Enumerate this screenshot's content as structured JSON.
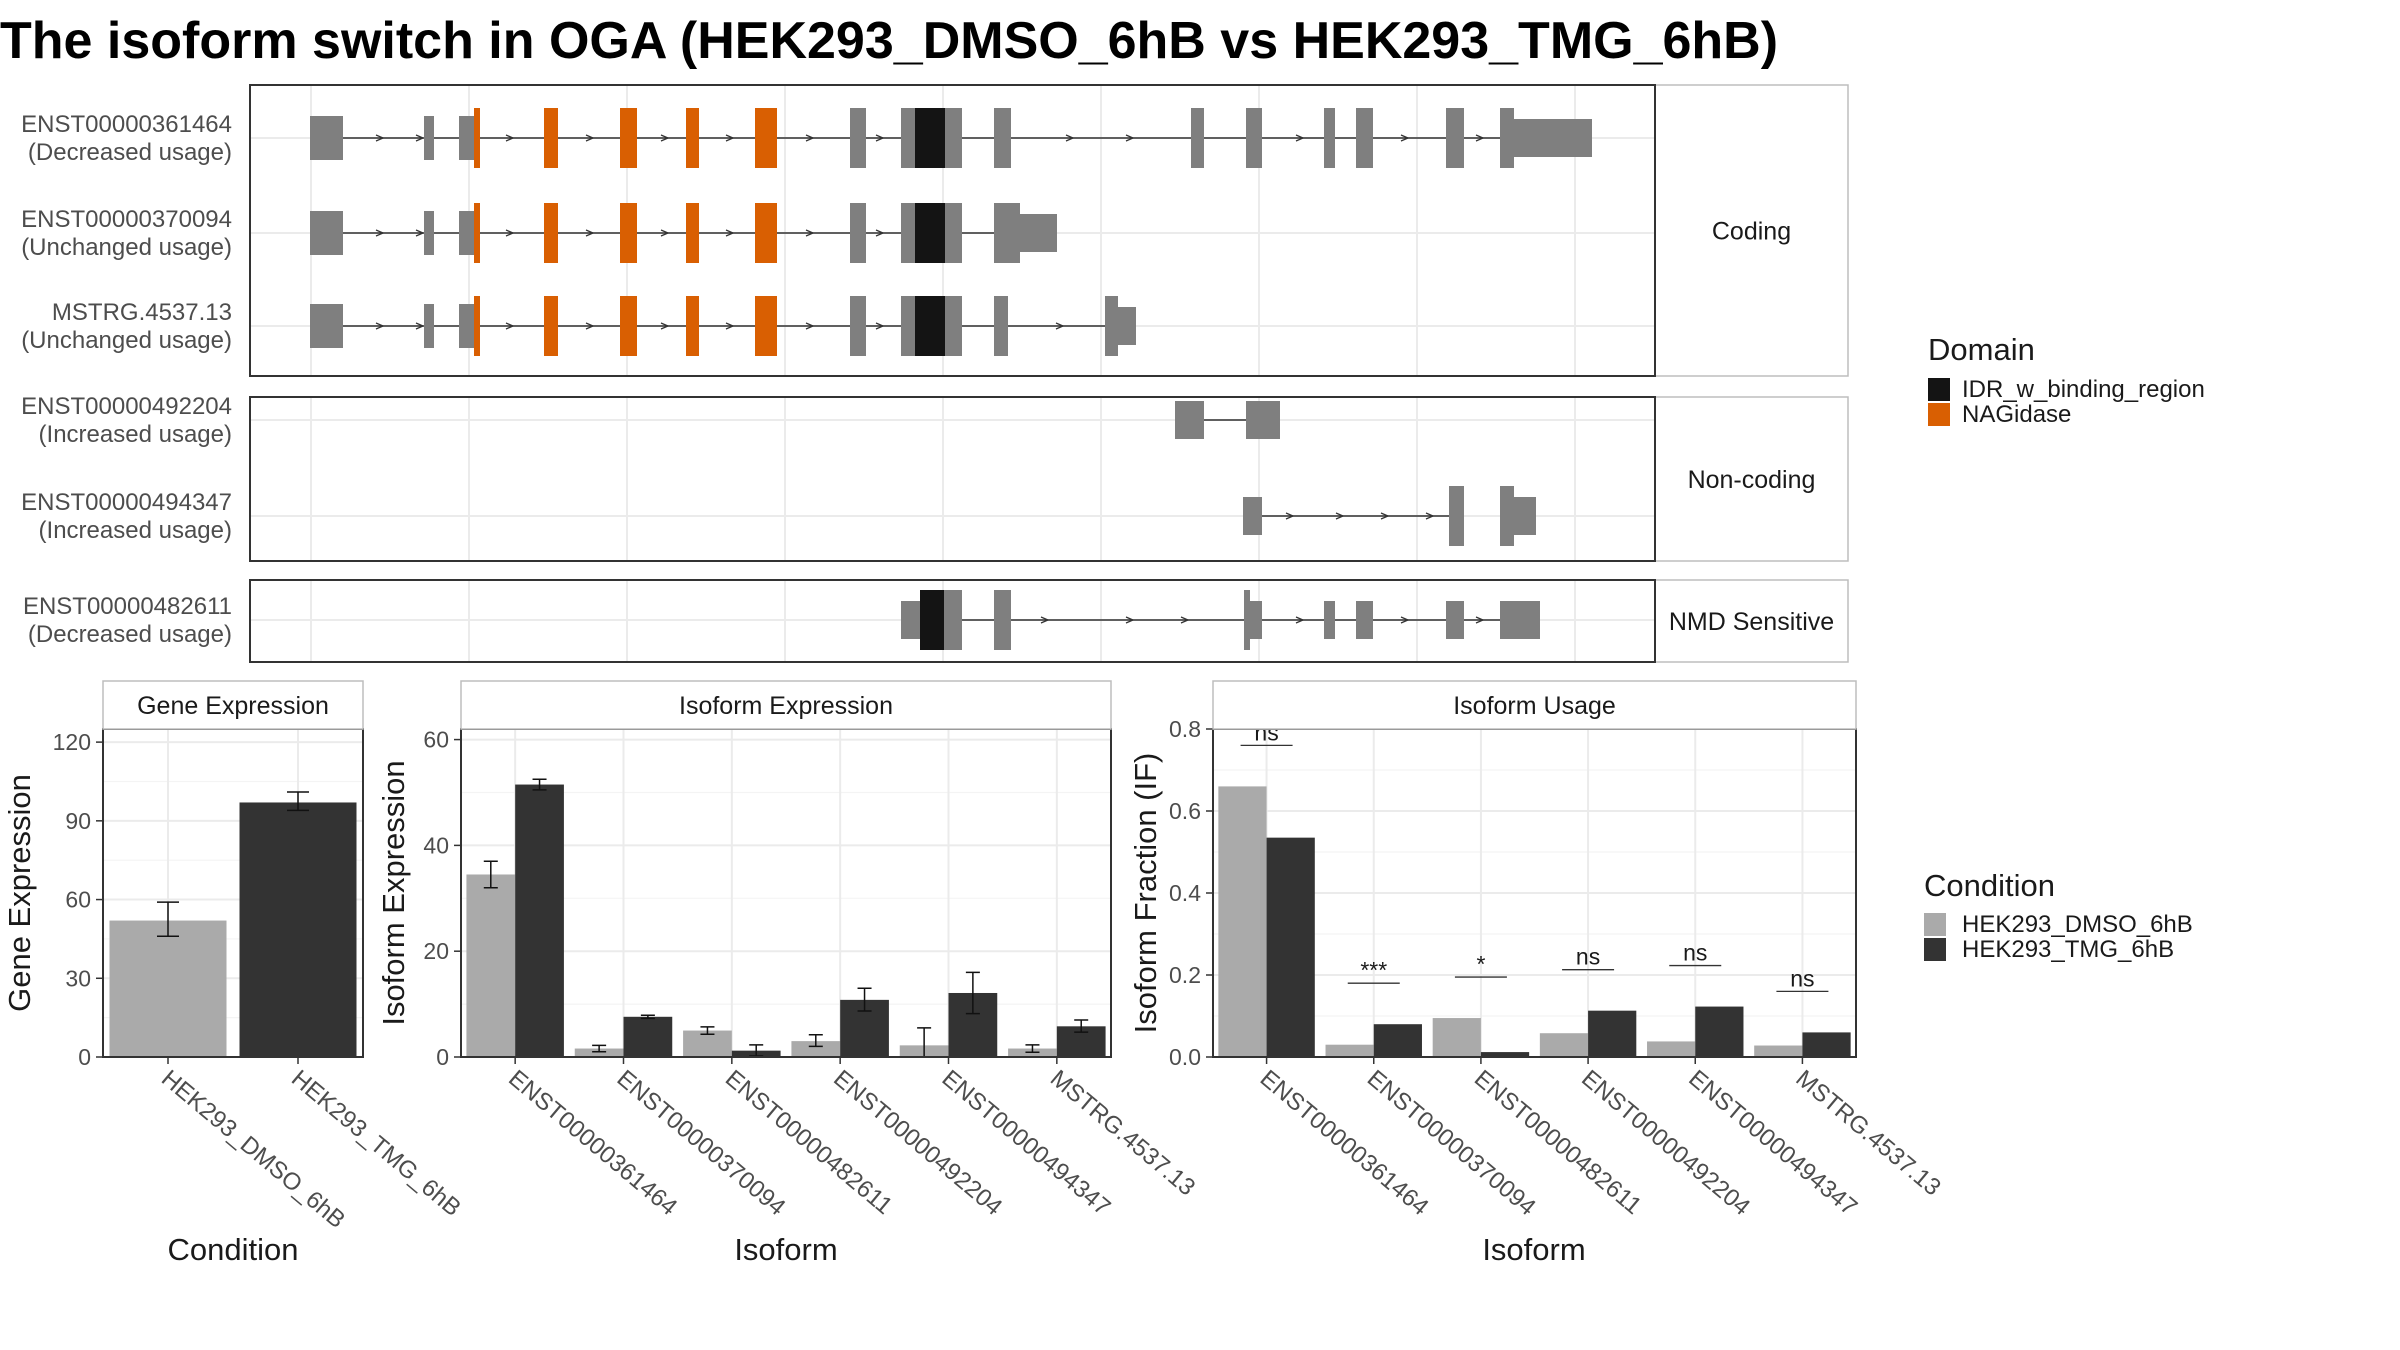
{
  "title": "The isoform switch in OGA (HEK293_DMSO_6hB vs HEK293_TMG_6hB)",
  "colors": {
    "exon": "#7f7f7f",
    "idr": "#141414",
    "nagidase": "#d95f02",
    "dmso": "#aaaaaa",
    "tmg": "#333333",
    "grid": "#ebebeb",
    "border": "#333333",
    "strip_border": "#bdbdbd"
  },
  "structure": {
    "panels": [
      {
        "label": "Coding",
        "isoforms": [
          {
            "id": "ENST00000361464",
            "usage": "(Decreased usage)"
          },
          {
            "id": "ENST00000370094",
            "usage": "(Unchanged usage)"
          },
          {
            "id": "MSTRG.4537.13",
            "usage": "(Unchanged usage)"
          }
        ]
      },
      {
        "label": "Non-coding",
        "isoforms": [
          {
            "id": "ENST00000492204",
            "usage": "(Increased usage)"
          },
          {
            "id": "ENST00000494347",
            "usage": "(Increased usage)"
          }
        ]
      },
      {
        "label": "NMD Sensitive",
        "isoforms": [
          {
            "id": "ENST00000482611",
            "usage": "(Decreased usage)"
          }
        ]
      }
    ]
  },
  "legend_domain": {
    "title": "Domain",
    "items": [
      {
        "label": "IDR_w_binding_region",
        "color": "#141414"
      },
      {
        "label": "NAGidase",
        "color": "#d95f02"
      }
    ]
  },
  "legend_condition": {
    "title": "Condition",
    "items": [
      {
        "label": "HEK293_DMSO_6hB",
        "color": "#aaaaaa"
      },
      {
        "label": "HEK293_TMG_6hB",
        "color": "#333333"
      }
    ]
  },
  "chart_data": [
    {
      "type": "bar",
      "title": "Gene Expression",
      "xlabel": "Condition",
      "ylabel": "Gene Expression",
      "ylim": [
        0,
        125
      ],
      "yticks": [
        0,
        30,
        60,
        90,
        120
      ],
      "categories": [
        "HEK293_DMSO_6hB",
        "HEK293_TMG_6hB"
      ],
      "values": [
        52,
        97
      ],
      "errors": [
        [
          46,
          59
        ],
        [
          94,
          101
        ]
      ]
    },
    {
      "type": "bar",
      "title": "Isoform Expression",
      "xlabel": "Isoform",
      "ylabel": "Isoform Expression",
      "ylim": [
        0,
        62
      ],
      "yticks": [
        0,
        20,
        40,
        60
      ],
      "categories": [
        "ENST00000361464",
        "ENST00000370094",
        "ENST00000482611",
        "ENST00000492204",
        "ENST00000494347",
        "MSTRG.4537.13"
      ],
      "series": [
        {
          "name": "HEK293_DMSO_6hB",
          "values": [
            34.5,
            1.6,
            5.0,
            3.0,
            2.2,
            1.6
          ],
          "errors": [
            [
              32,
              37
            ],
            [
              1.0,
              2.2
            ],
            [
              4.3,
              5.7
            ],
            [
              2.0,
              4.2
            ],
            [
              0,
              5.5
            ],
            [
              0.9,
              2.3
            ]
          ]
        },
        {
          "name": "HEK293_TMG_6hB",
          "values": [
            51.5,
            7.6,
            1.2,
            10.8,
            12.1,
            5.8
          ],
          "errors": [
            [
              50.5,
              52.5
            ],
            [
              7.3,
              7.9
            ],
            [
              0.2,
              2.3
            ],
            [
              8.7,
              13.0
            ],
            [
              8.2,
              16.0
            ],
            [
              4.7,
              7.0
            ]
          ]
        }
      ]
    },
    {
      "type": "bar",
      "title": "Isoform Usage",
      "xlabel": "Isoform",
      "ylabel": "Isoform Fraction (IF)",
      "ylim": [
        0,
        0.8
      ],
      "yticks": [
        0.0,
        0.2,
        0.4,
        0.6,
        0.8
      ],
      "categories": [
        "ENST00000361464",
        "ENST00000370094",
        "ENST00000482611",
        "ENST00000492204",
        "ENST00000494347",
        "MSTRG.4537.13"
      ],
      "series": [
        {
          "name": "HEK293_DMSO_6hB",
          "values": [
            0.66,
            0.03,
            0.095,
            0.058,
            0.038,
            0.028
          ]
        },
        {
          "name": "HEK293_TMG_6hB",
          "values": [
            0.535,
            0.08,
            0.012,
            0.113,
            0.123,
            0.06
          ]
        }
      ],
      "significance": [
        "ns",
        "***",
        "*",
        "ns",
        "ns",
        "ns"
      ]
    }
  ]
}
